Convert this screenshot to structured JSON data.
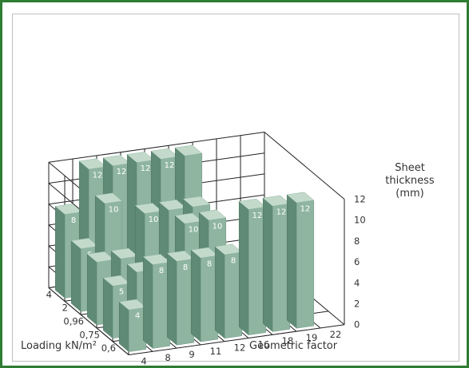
{
  "chart_data": {
    "type": "bar3d",
    "xlabel": "Geometric factor",
    "ylabel": "Loading kN/m²",
    "zlabel": [
      "Sheet",
      "thickness",
      "(mm)"
    ],
    "x_ticks": [
      "4",
      "8",
      "9",
      "11",
      "12",
      "16",
      "18",
      "19",
      "22"
    ],
    "y_ticks": [
      "0,6",
      "0,75",
      "0,96",
      "2",
      "4"
    ],
    "z_ticks": [
      "0",
      "2",
      "4",
      "6",
      "8",
      "10",
      "12"
    ],
    "zlim": [
      0,
      12
    ],
    "grid": true,
    "bar_color": "#8fb5a0",
    "bars": [
      {
        "x": "4",
        "y": "0,6",
        "value": 4,
        "label": "4"
      },
      {
        "x": "4",
        "y": "0,75",
        "value": 5,
        "label": "5"
      },
      {
        "x": "4",
        "y": "0,96",
        "value": 6,
        "label": ""
      },
      {
        "x": "4",
        "y": "2",
        "value": 6,
        "label": "6"
      },
      {
        "x": "4",
        "y": "4",
        "value": 8,
        "label": "8"
      },
      {
        "x": "8",
        "y": "0,6",
        "value": 8,
        "label": "8"
      },
      {
        "x": "8",
        "y": "0,75",
        "value": 6,
        "label": ""
      },
      {
        "x": "8",
        "y": "0,96",
        "value": 6,
        "label": ""
      },
      {
        "x": "8",
        "y": "2",
        "value": 10,
        "label": "10"
      },
      {
        "x": "8",
        "y": "4",
        "value": 12,
        "label": "12"
      },
      {
        "x": "9",
        "y": "0,6",
        "value": 8,
        "label": "8"
      },
      {
        "x": "9",
        "y": "0,75",
        "value": 6,
        "label": ""
      },
      {
        "x": "9",
        "y": "0,96",
        "value": 10,
        "label": "10"
      },
      {
        "x": "9",
        "y": "4",
        "value": 12,
        "label": "12"
      },
      {
        "x": "11",
        "y": "0,6",
        "value": 8,
        "label": "8"
      },
      {
        "x": "11",
        "y": "0,75",
        "value": 10,
        "label": "10"
      },
      {
        "x": "11",
        "y": "0,96",
        "value": 10,
        "label": ""
      },
      {
        "x": "11",
        "y": "4",
        "value": 12,
        "label": "12"
      },
      {
        "x": "12",
        "y": "0,6",
        "value": 8,
        "label": "8"
      },
      {
        "x": "12",
        "y": "0,75",
        "value": 10,
        "label": "10"
      },
      {
        "x": "12",
        "y": "0,96",
        "value": 10,
        "label": ""
      },
      {
        "x": "12",
        "y": "4",
        "value": 12,
        "label": "12"
      },
      {
        "x": "16",
        "y": "0,6",
        "value": 12,
        "label": "12"
      },
      {
        "x": "16",
        "y": "4",
        "value": 12,
        "label": ""
      },
      {
        "x": "18",
        "y": "0,6",
        "value": 12,
        "label": "12"
      },
      {
        "x": "19",
        "y": "0,6",
        "value": 12,
        "label": "12"
      }
    ]
  }
}
